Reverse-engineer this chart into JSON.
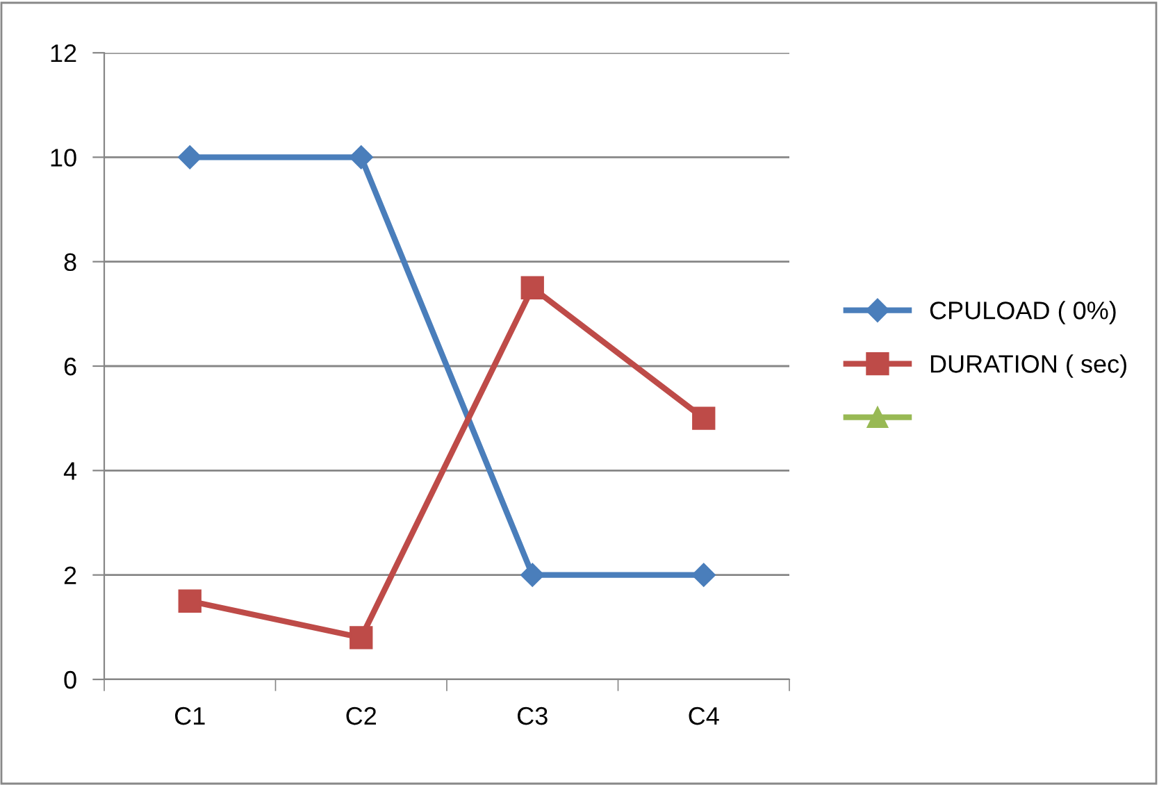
{
  "chart_data": {
    "type": "line",
    "categories": [
      "C1",
      "C2",
      "C3",
      "C4"
    ],
    "series": [
      {
        "name": "CPULOAD ( 0%)",
        "color": "#4a7ebb",
        "marker": "diamond",
        "values": [
          10,
          10,
          2,
          2
        ]
      },
      {
        "name": "DURATION ( sec)",
        "color": "#be4b48",
        "marker": "square",
        "values": [
          1.5,
          0.8,
          7.5,
          5
        ]
      },
      {
        "color": "#98b954",
        "marker": "triangle",
        "values": [
          null,
          null,
          null,
          null
        ]
      }
    ],
    "ylim": [
      0,
      12
    ],
    "yticks": [
      0,
      2,
      4,
      6,
      8,
      10,
      12
    ],
    "grid": "y",
    "legend": "right"
  }
}
